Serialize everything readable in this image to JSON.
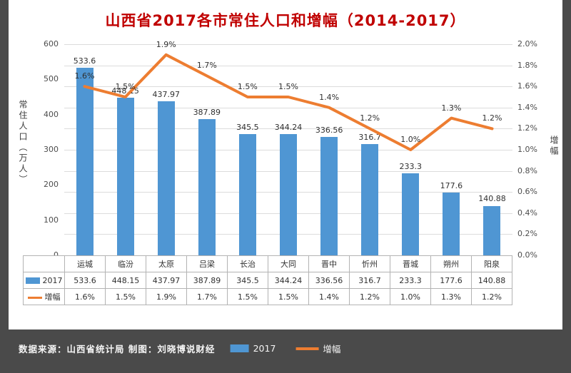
{
  "title": "山西省2017各市常住人口和增幅（2014-2017）",
  "source_note": "数据来源：山西省统计局 制图：刘晓博说财经",
  "legend": {
    "bar_label": "2017",
    "line_label": "增幅"
  },
  "colors": {
    "outer_bg": "#4a4a4a",
    "panel_bg": "#ffffff",
    "title": "#c00000",
    "bar": "#4f96d3",
    "line": "#ed7d31",
    "grid": "#dcdcdc"
  },
  "chart_data": {
    "type": "bar",
    "subtype": "combo-bar-line",
    "title": "山西省2017各市常住人口和增幅（2014-2017）",
    "categories": [
      "运城",
      "临汾",
      "太原",
      "吕梁",
      "长治",
      "大同",
      "晋中",
      "忻州",
      "晋城",
      "朔州",
      "阳泉"
    ],
    "series": [
      {
        "name": "2017",
        "type": "bar",
        "axis": "left",
        "values": [
          533.6,
          448.15,
          437.97,
          387.89,
          345.5,
          344.24,
          336.56,
          316.7,
          233.3,
          177.6,
          140.88
        ]
      },
      {
        "name": "增幅",
        "type": "line",
        "axis": "right",
        "values": [
          1.6,
          1.5,
          1.9,
          1.7,
          1.5,
          1.5,
          1.4,
          1.2,
          1.0,
          1.3,
          1.2
        ]
      }
    ],
    "left_axis": {
      "title": "常住人口（万人）",
      "min": 0,
      "max": 600,
      "step": 100
    },
    "right_axis": {
      "title": "增幅",
      "min": 0,
      "max": 2.0,
      "step": 0.2,
      "format": "percent"
    },
    "grid": true,
    "legend_position": "bottom"
  },
  "table": {
    "header": [
      "",
      "运城",
      "临汾",
      "太原",
      "吕梁",
      "长治",
      "大同",
      "晋中",
      "忻州",
      "晋城",
      "朔州",
      "阳泉"
    ],
    "rows": [
      {
        "label": "2017",
        "swatch": "bar",
        "cells": [
          "533.6",
          "448.15",
          "437.97",
          "387.89",
          "345.5",
          "344.24",
          "336.56",
          "316.7",
          "233.3",
          "177.6",
          "140.88"
        ]
      },
      {
        "label": "增幅",
        "swatch": "line",
        "cells": [
          "1.6%",
          "1.5%",
          "1.9%",
          "1.7%",
          "1.5%",
          "1.5%",
          "1.4%",
          "1.2%",
          "1.0%",
          "1.3%",
          "1.2%"
        ]
      }
    ]
  }
}
